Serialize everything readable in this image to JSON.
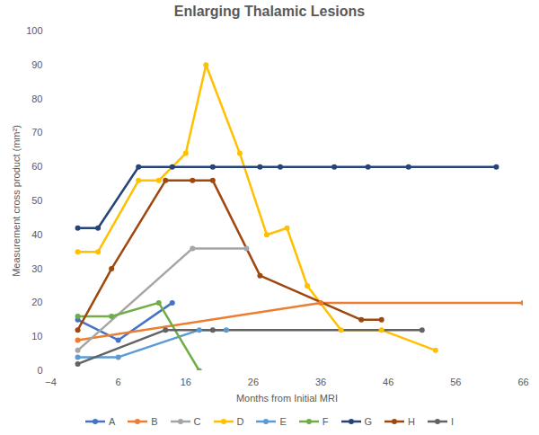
{
  "chart_data": {
    "type": "line",
    "title": "Enlarging Thalamic Lesions",
    "x_label": "Months from Initial MRI",
    "y_label": "Measurement cross product (mm²)",
    "xlim": [
      -4,
      66
    ],
    "xticks": [
      -4,
      6,
      16,
      26,
      36,
      46,
      56,
      66
    ],
    "ylim": [
      0,
      100
    ],
    "yticks": [
      0,
      10,
      20,
      30,
      40,
      50,
      60,
      70,
      80,
      90,
      100
    ],
    "grid": false,
    "legend": "bottom",
    "marker": "circle",
    "series": [
      {
        "name": "A",
        "color": "#4472c4",
        "x": [
          0,
          6,
          14
        ],
        "values": [
          15,
          9,
          20
        ]
      },
      {
        "name": "B",
        "color": "#ed7d31",
        "x": [
          0,
          36,
          66
        ],
        "values": [
          9,
          20,
          20
        ]
      },
      {
        "name": "C",
        "color": "#a5a5a5",
        "x": [
          0,
          17,
          25
        ],
        "values": [
          6,
          36,
          36
        ]
      },
      {
        "name": "D",
        "color": "#ffc000",
        "x": [
          0,
          3,
          9,
          12,
          16,
          19,
          24,
          28,
          31,
          34,
          39,
          45,
          53
        ],
        "values": [
          35,
          35,
          56,
          56,
          64,
          90,
          64,
          40,
          42,
          25,
          12,
          12,
          6
        ]
      },
      {
        "name": "E",
        "color": "#5b9bd5",
        "x": [
          0,
          6,
          18,
          22
        ],
        "values": [
          4,
          4,
          12,
          12
        ]
      },
      {
        "name": "F",
        "color": "#70ad47",
        "x": [
          0,
          5,
          12,
          18
        ],
        "values": [
          16,
          16,
          20,
          0
        ]
      },
      {
        "name": "G",
        "color": "#264478",
        "x": [
          0,
          3,
          9,
          14,
          20,
          27,
          30,
          38,
          43,
          49,
          62
        ],
        "values": [
          42,
          42,
          60,
          60,
          60,
          60,
          60,
          60,
          60,
          60,
          60
        ]
      },
      {
        "name": "H",
        "color": "#9e480e",
        "x": [
          0,
          5,
          13,
          17,
          20,
          27,
          42,
          45
        ],
        "values": [
          12,
          30,
          56,
          56,
          56,
          28,
          15,
          15
        ]
      },
      {
        "name": "I",
        "color": "#636363",
        "x": [
          0,
          13,
          20,
          51
        ],
        "values": [
          2,
          12,
          12,
          12
        ]
      }
    ]
  }
}
